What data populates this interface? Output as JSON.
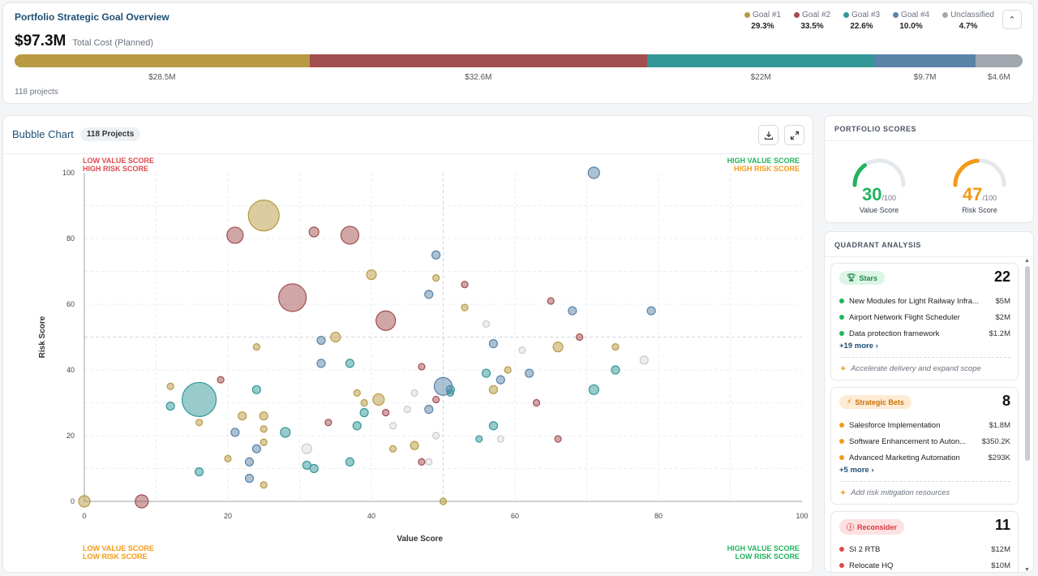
{
  "overview": {
    "title": "Portfolio Strategic Goal Overview",
    "total_cost": "$97.3M",
    "total_label": "Total Cost (Planned)",
    "projects": "118 projects",
    "goals": [
      {
        "name": "Goal #1",
        "pct": "29.3%",
        "value_label": "$28.5M",
        "fraction": 0.293,
        "color": "#b89a44"
      },
      {
        "name": "Goal #2",
        "pct": "33.5%",
        "value_label": "$32.6M",
        "fraction": 0.335,
        "color": "#a24d4f"
      },
      {
        "name": "Goal #3",
        "pct": "22.6%",
        "value_label": "$22M",
        "fraction": 0.226,
        "color": "#339798"
      },
      {
        "name": "Goal #4",
        "pct": "10.0%",
        "value_label": "$9.7M",
        "fraction": 0.1,
        "color": "#5a83a8"
      },
      {
        "name": "Unclassified",
        "pct": "4.7%",
        "value_label": "$4.6M",
        "fraction": 0.047,
        "color": "#a1a7ae"
      }
    ]
  },
  "bubble": {
    "title": "Bubble Chart",
    "badge": "118 Projects",
    "quadrants": {
      "top_left": [
        "LOW VALUE SCORE",
        "HIGH RISK SCORE"
      ],
      "top_right": [
        "HIGH VALUE SCORE",
        "HIGH RISK SCORE"
      ],
      "bottom_left": [
        "LOW VALUE SCORE",
        "LOW RISK SCORE"
      ],
      "bottom_right": [
        "HIGH VALUE SCORE",
        "LOW RISK SCORE"
      ]
    }
  },
  "chart_data": {
    "type": "scatter",
    "xlabel": "Value Score",
    "ylabel": "Risk Score",
    "xlim": [
      0,
      100
    ],
    "ylim": [
      0,
      100
    ],
    "xticks": [
      0,
      20,
      40,
      60,
      80,
      100
    ],
    "yticks": [
      0,
      20,
      40,
      60,
      80,
      100
    ],
    "grid": true,
    "series": [
      {
        "name": "Goal #1",
        "color": "#b89a44",
        "points": [
          [
            25,
            87,
            19
          ],
          [
            40,
            69,
            6
          ],
          [
            35,
            50,
            6
          ],
          [
            24,
            47,
            4
          ],
          [
            12,
            35,
            4
          ],
          [
            16,
            24,
            4
          ],
          [
            22,
            26,
            5
          ],
          [
            25,
            26,
            5
          ],
          [
            25,
            22,
            4
          ],
          [
            25,
            18,
            4
          ],
          [
            20,
            13,
            4
          ],
          [
            25,
            5,
            4
          ],
          [
            0,
            0,
            7
          ],
          [
            38,
            33,
            4
          ],
          [
            39,
            30,
            4
          ],
          [
            41,
            31,
            7
          ],
          [
            43,
            16,
            4
          ],
          [
            46,
            17,
            5
          ],
          [
            49,
            68,
            4
          ],
          [
            53,
            59,
            4
          ],
          [
            57,
            34,
            5
          ],
          [
            59,
            40,
            4
          ],
          [
            66,
            47,
            6
          ],
          [
            74,
            47,
            4
          ],
          [
            50,
            0,
            4
          ]
        ]
      },
      {
        "name": "Goal #2",
        "color": "#a24d4f",
        "points": [
          [
            21,
            81,
            10
          ],
          [
            29,
            62,
            17
          ],
          [
            32,
            82,
            6
          ],
          [
            37,
            81,
            11
          ],
          [
            42,
            55,
            12
          ],
          [
            19,
            37,
            4
          ],
          [
            34,
            24,
            4
          ],
          [
            42,
            27,
            4
          ],
          [
            47,
            41,
            4
          ],
          [
            47,
            12,
            4
          ],
          [
            49,
            31,
            4
          ],
          [
            53,
            66,
            4
          ],
          [
            63,
            30,
            4
          ],
          [
            65,
            61,
            4
          ],
          [
            69,
            50,
            4
          ],
          [
            66,
            19,
            4
          ],
          [
            8,
            0,
            8
          ]
        ]
      },
      {
        "name": "Goal #3",
        "color": "#339798",
        "points": [
          [
            16,
            31,
            21
          ],
          [
            12,
            29,
            5
          ],
          [
            16,
            9,
            5
          ],
          [
            24,
            34,
            5
          ],
          [
            28,
            21,
            6
          ],
          [
            31,
            11,
            5
          ],
          [
            32,
            10,
            5
          ],
          [
            37,
            42,
            5
          ],
          [
            37,
            12,
            5
          ],
          [
            38,
            23,
            5
          ],
          [
            39,
            27,
            5
          ],
          [
            51,
            34,
            5
          ],
          [
            51,
            33,
            4
          ],
          [
            55,
            19,
            4
          ],
          [
            56,
            39,
            5
          ],
          [
            57,
            23,
            5
          ],
          [
            71,
            34,
            6
          ],
          [
            74,
            40,
            5
          ]
        ]
      },
      {
        "name": "Goal #4",
        "color": "#5a83a8",
        "points": [
          [
            21,
            21,
            5
          ],
          [
            23,
            12,
            5
          ],
          [
            23,
            7,
            5
          ],
          [
            24,
            16,
            5
          ],
          [
            33,
            49,
            5
          ],
          [
            33,
            42,
            5
          ],
          [
            48,
            28,
            5
          ],
          [
            48,
            63,
            5
          ],
          [
            49,
            75,
            5
          ],
          [
            50,
            35,
            11
          ],
          [
            57,
            48,
            5
          ],
          [
            58,
            37,
            5
          ],
          [
            62,
            39,
            5
          ],
          [
            68,
            58,
            5
          ],
          [
            71,
            100,
            7
          ],
          [
            79,
            58,
            5
          ]
        ]
      },
      {
        "name": "Unclassified",
        "color": "#d7dadd",
        "points": [
          [
            31,
            16,
            6
          ],
          [
            43,
            23,
            4
          ],
          [
            45,
            28,
            4
          ],
          [
            46,
            33,
            4
          ],
          [
            48,
            12,
            4
          ],
          [
            49,
            20,
            4
          ],
          [
            56,
            54,
            4
          ],
          [
            58,
            19,
            4
          ],
          [
            61,
            46,
            4
          ],
          [
            78,
            43,
            5
          ]
        ]
      }
    ]
  },
  "scores": {
    "title": "PORTFOLIO SCORES",
    "value": {
      "score": "30",
      "den": "/100",
      "caption": "Value Score",
      "fraction": 0.3,
      "color": "#22b35e"
    },
    "risk": {
      "score": "47",
      "den": "/100",
      "caption": "Risk Score",
      "fraction": 0.47,
      "color": "#f29a1a"
    }
  },
  "quadrant_analysis": {
    "title": "QUADRANT ANALYSIS",
    "stars": {
      "label": "Stars",
      "count": "22",
      "more": "+19 more ›",
      "tip": "Accelerate delivery and expand scope",
      "items": [
        {
          "name": "New Modules for Light Railway Infra...",
          "value": "$5M"
        },
        {
          "name": "Airport Network Flight Scheduler",
          "value": "$2M"
        },
        {
          "name": "Data protection framework",
          "value": "$1.2M"
        }
      ]
    },
    "bets": {
      "label": "Strategic Bets",
      "count": "8",
      "more": "+5 more ›",
      "tip": "Add risk mitigation resources",
      "items": [
        {
          "name": "Salesforce Implementation",
          "value": "$1.8M"
        },
        {
          "name": "Software Enhancement to Auton...",
          "value": "$350.2K"
        },
        {
          "name": "Advanced Marketing Automation",
          "value": "$293K"
        }
      ]
    },
    "reconsider": {
      "label": "Reconsider",
      "count": "11",
      "items": [
        {
          "name": "SI 2 RTB",
          "value": "$12M"
        },
        {
          "name": "Relocate HQ",
          "value": "$10M"
        }
      ]
    }
  }
}
